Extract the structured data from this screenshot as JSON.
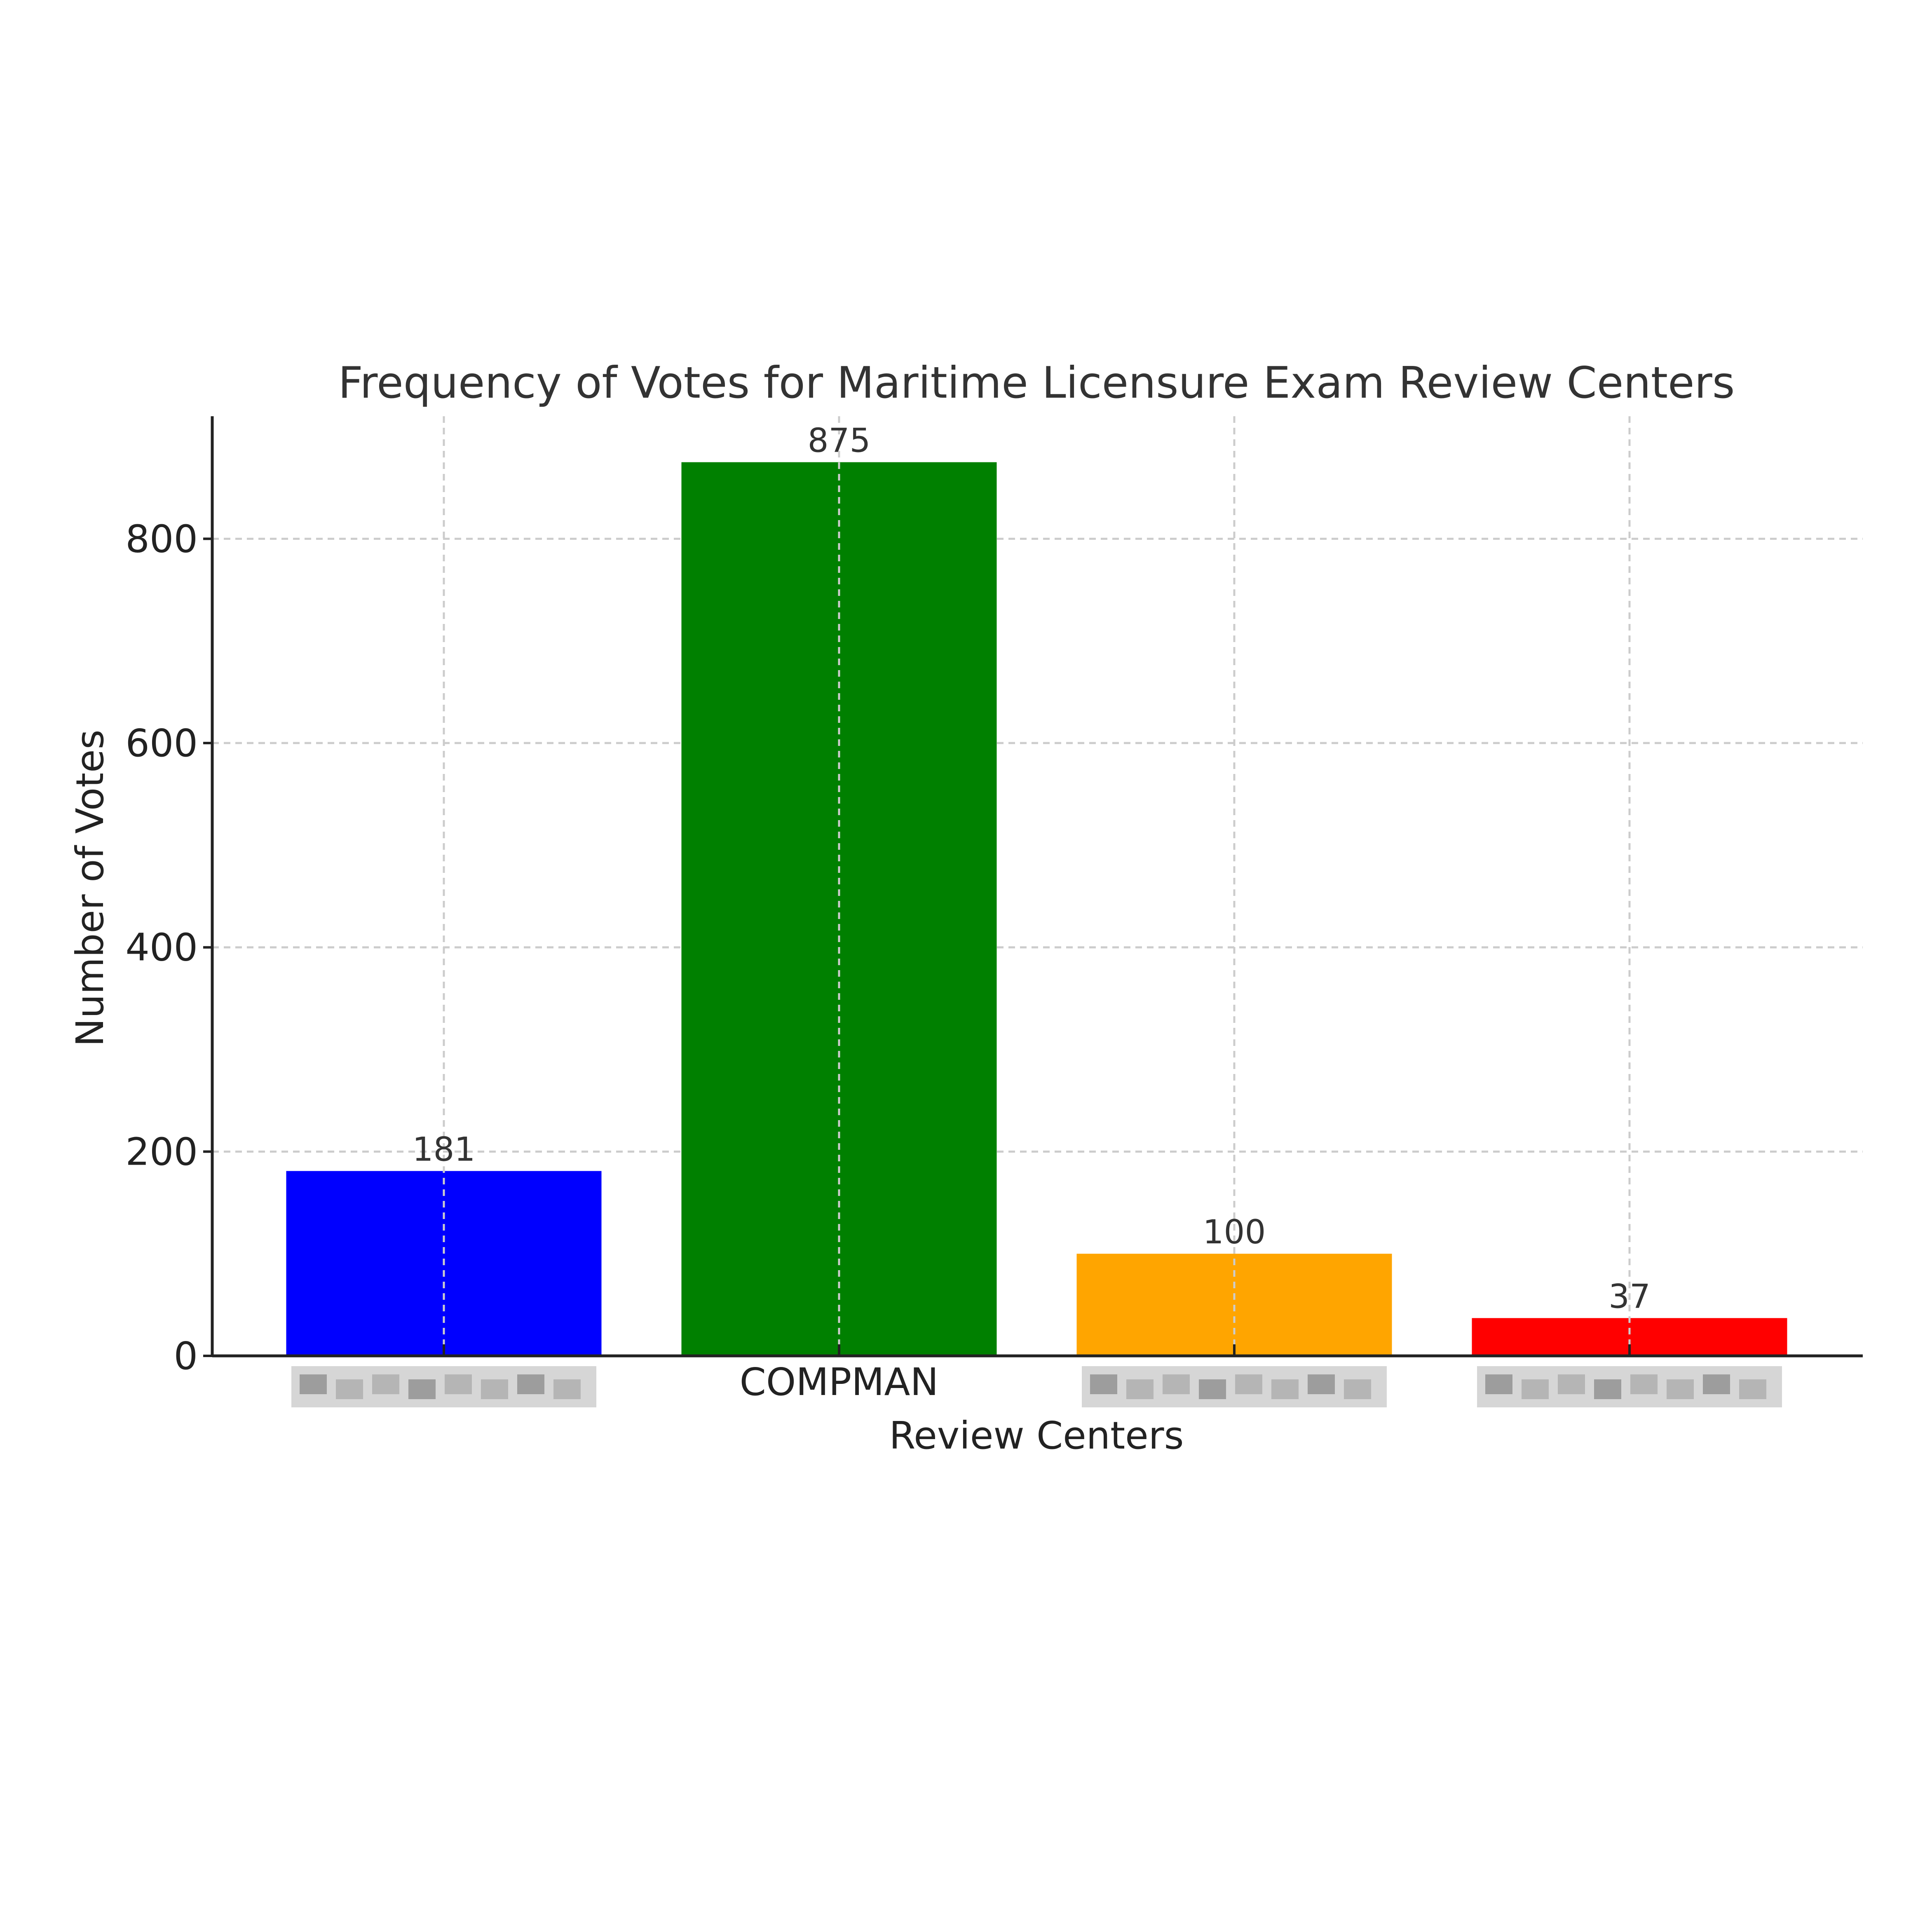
{
  "chart_data": {
    "type": "bar",
    "title": "Frequency of Votes for Maritime Licensure Exam Review Centers",
    "xlabel": "Review Centers",
    "ylabel": "Number of Votes",
    "categories": [
      "",
      "COMPMAN",
      "",
      ""
    ],
    "category_redacted": [
      true,
      false,
      true,
      true
    ],
    "values": [
      181,
      875,
      100,
      37
    ],
    "colors": [
      "#0000ff",
      "#008000",
      "#ffa500",
      "#ff0000"
    ],
    "data_labels": [
      "181",
      "875",
      "100",
      "37"
    ],
    "ylim": [
      0,
      920
    ],
    "yticks": [
      0,
      200,
      400,
      600,
      800
    ],
    "ytick_labels": [
      "0",
      "200",
      "400",
      "600",
      "800"
    ],
    "grid": true,
    "legend": false
  }
}
